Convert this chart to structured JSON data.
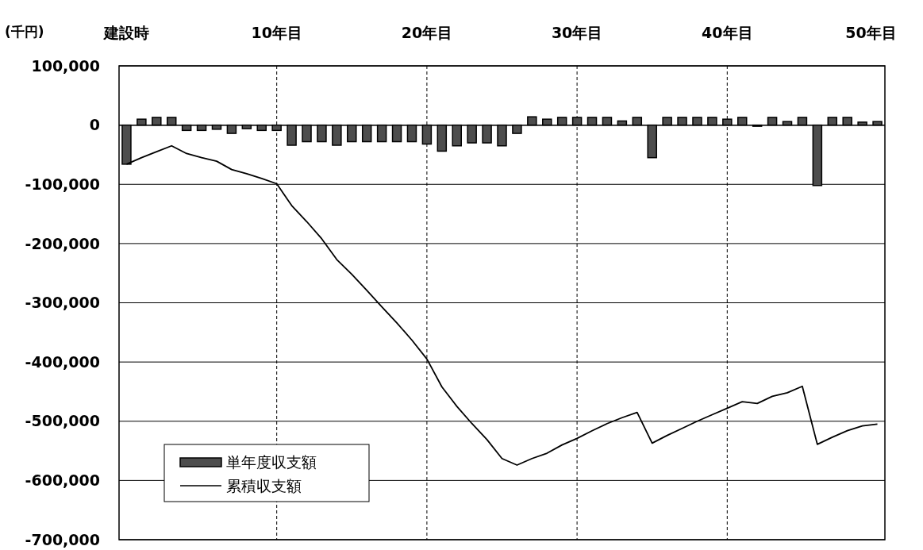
{
  "chart_data": {
    "type": "bar",
    "ylabel": "(千円)",
    "categories": [
      "建設時",
      null,
      null,
      null,
      null,
      null,
      null,
      null,
      null,
      null,
      "10年目",
      null,
      null,
      null,
      null,
      null,
      null,
      null,
      null,
      null,
      "20年目",
      null,
      null,
      null,
      null,
      null,
      null,
      null,
      null,
      null,
      "30年目",
      null,
      null,
      null,
      null,
      null,
      null,
      null,
      null,
      null,
      "40年目",
      null,
      null,
      null,
      null,
      null,
      null,
      null,
      null,
      null,
      "50年目"
    ],
    "series": [
      {
        "name": "単年度収支額",
        "color": "#4d4d4d",
        "values": [
          -66000,
          10000,
          13000,
          13000,
          -9000,
          -9000,
          -7000,
          -14000,
          -6000,
          -9000,
          -9000,
          -34000,
          -28000,
          -28000,
          -34000,
          -28000,
          -28000,
          -28000,
          -28000,
          -28000,
          -32000,
          -44000,
          -35000,
          -30000,
          -30000,
          -35000,
          -14000,
          14000,
          10000,
          13000,
          13000,
          13000,
          13000,
          7000,
          13000,
          -55000,
          13000,
          13000,
          13000,
          13000,
          10000,
          13000,
          -2000,
          13000,
          6000,
          13000,
          -102000,
          13000,
          13000,
          5000,
          6000
        ]
      },
      {
        "name": "累積収支額",
        "type": "line",
        "color": "#000000",
        "values": [
          -66000,
          -55000,
          -45000,
          -35000,
          -48000,
          -55000,
          -61000,
          -75000,
          -82000,
          -90000,
          -99000,
          -136000,
          -163000,
          -192000,
          -227000,
          -252000,
          -279000,
          -307000,
          -334000,
          -363000,
          -395000,
          -442000,
          -475000,
          -504000,
          -531000,
          -563000,
          -574000,
          -563000,
          -554000,
          -540000,
          -529000,
          -516000,
          -504000,
          -494000,
          -485000,
          -537000,
          -524000,
          -512000,
          -500000,
          -489000,
          -478000,
          -467000,
          -470000,
          -458000,
          -452000,
          -441000,
          -539000,
          -527000,
          -516000,
          -508000,
          -505000
        ]
      }
    ],
    "ylim": [
      -700000,
      100000
    ],
    "yticks": [
      {
        "value": 100000,
        "label": "100,000"
      },
      0,
      {
        "value": -100000,
        "label": "-100,000"
      },
      {
        "value": -200000,
        "label": "-200,000"
      },
      {
        "value": -300000,
        "label": "-300,000"
      },
      {
        "value": -400000,
        "label": "-400,000"
      },
      {
        "value": -500000,
        "label": "-500,000"
      },
      {
        "value": -600000,
        "label": "-600,000"
      },
      {
        "value": -700000,
        "label": "-700,000"
      }
    ],
    "grid": true,
    "legend": "bottom left"
  }
}
